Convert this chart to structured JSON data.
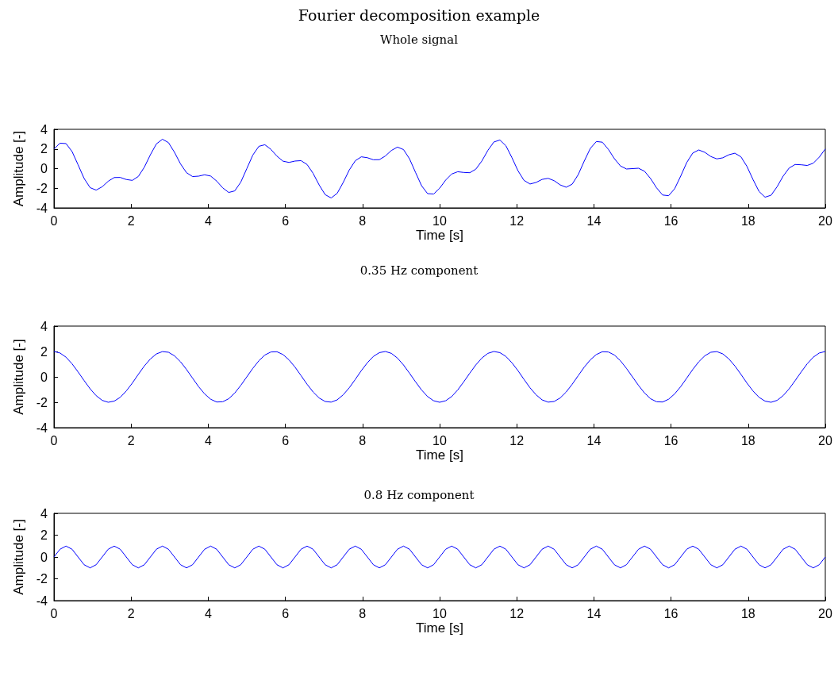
{
  "chart_data": [
    {
      "type": "line",
      "title": "Fourier decomposition example",
      "subtitle": "Whole signal",
      "xlabel": "Time [s]",
      "ylabel": "Amplitude [-]",
      "xlim": [
        0,
        20
      ],
      "xticks": [
        0,
        2,
        4,
        6,
        8,
        10,
        12,
        14,
        16,
        18,
        20
      ],
      "ylim": [
        -4,
        4
      ],
      "yticks": [
        -4,
        -2,
        0,
        2,
        4
      ],
      "x": [
        0,
        0.15625,
        0.3125,
        0.46875,
        0.625,
        0.78125,
        0.9375,
        1.09375,
        1.25,
        1.40625,
        1.5625,
        1.71875,
        1.875,
        2.03125,
        2.1875,
        2.34375,
        2.5,
        2.65625,
        2.8125,
        2.96875,
        3.125,
        3.28125,
        3.4375,
        3.59375,
        3.75,
        3.90625,
        4.0625,
        4.21875,
        4.375,
        4.53125,
        4.6875,
        4.84375,
        5,
        5.15625,
        5.3125,
        5.46875,
        5.625,
        5.78125,
        5.9375,
        6.09375,
        6.25,
        6.40625,
        6.5625,
        6.71875,
        6.875,
        7.03125,
        7.1875,
        7.34375,
        7.5,
        7.65625,
        7.8125,
        7.96875,
        8.125,
        8.28125,
        8.4375,
        8.59375,
        8.75,
        8.90625,
        9.0625,
        9.21875,
        9.375,
        9.53125,
        9.6875,
        9.84375,
        10,
        10.15625,
        10.3125,
        10.46875,
        10.625,
        10.78125,
        10.9375,
        11.09375,
        11.25,
        11.40625,
        11.5625,
        11.71875,
        11.875,
        12.03125,
        12.1875,
        12.34375,
        12.5,
        12.65625,
        12.8125,
        12.96875,
        13.125,
        13.28125,
        13.4375,
        13.59375,
        13.75,
        13.90625,
        14.0625,
        14.21875,
        14.375,
        14.53125,
        14.6875,
        14.84375,
        15,
        15.15625,
        15.3125,
        15.46875,
        15.625,
        15.78125,
        15.9375,
        16.09375,
        16.25,
        16.40625,
        16.5625,
        16.71875,
        16.875,
        17.03125,
        17.1875,
        17.34375,
        17.5,
        17.65625,
        17.8125,
        17.96875,
        18.125,
        18.28125,
        18.4375,
        18.59375,
        18.75,
        18.90625,
        19.0625,
        19.21875,
        19.375,
        19.53125,
        19.6875,
        19.84375,
        20
      ],
      "series": [
        {
          "color": "#0000ff",
          "values": [
            2.0,
            2.59,
            2.55,
            1.74,
            0.39,
            -1.0,
            -1.94,
            -2.19,
            -1.85,
            -1.29,
            -0.91,
            -0.9,
            -1.11,
            -1.2,
            -0.8,
            0.15,
            1.41,
            2.52,
            2.99,
            2.65,
            1.66,
            0.48,
            -0.42,
            -0.81,
            -0.77,
            -0.63,
            -0.76,
            -1.27,
            -1.96,
            -2.43,
            -2.27,
            -1.38,
            0.0,
            1.38,
            2.27,
            2.43,
            1.96,
            1.27,
            0.76,
            0.63,
            0.77,
            0.81,
            0.42,
            -0.48,
            -1.66,
            -2.65,
            -2.99,
            -2.52,
            -1.41,
            -0.15,
            0.8,
            1.2,
            1.11,
            0.9,
            0.91,
            1.29,
            1.85,
            2.19,
            1.94,
            1.0,
            -0.39,
            -1.74,
            -2.55,
            -2.59,
            -2.0,
            -1.17,
            -0.55,
            -0.32,
            -0.39,
            -0.42,
            -0.06,
            0.77,
            1.85,
            2.71,
            2.91,
            2.32,
            1.11,
            -0.22,
            -1.2,
            -1.57,
            -1.41,
            -1.1,
            -0.99,
            -1.23,
            -1.66,
            -1.9,
            -1.58,
            -0.61,
            0.77,
            2.05,
            2.76,
            2.69,
            1.96,
            1.01,
            0.27,
            -0.04,
            0.0,
            0.04,
            -0.27,
            -1.01,
            -1.96,
            -2.69,
            -2.76,
            -2.05,
            -0.77,
            0.61,
            1.58,
            1.9,
            1.66,
            1.23,
            0.99,
            1.1,
            1.41,
            1.57,
            1.2,
            0.22,
            -1.11,
            -2.32,
            -2.91,
            -2.71,
            -1.85,
            -0.77,
            0.06,
            0.42,
            0.39,
            0.32,
            0.55,
            1.17,
            2.0
          ]
        }
      ]
    },
    {
      "type": "line",
      "title": "0.35 Hz component",
      "xlabel": "Time [s]",
      "ylabel": "Amplitude [-]",
      "xlim": [
        0,
        20
      ],
      "xticks": [
        0,
        2,
        4,
        6,
        8,
        10,
        12,
        14,
        16,
        18,
        20
      ],
      "ylim": [
        -4,
        4
      ],
      "yticks": [
        -4,
        -2,
        0,
        2,
        4
      ],
      "x": [
        0,
        0.15625,
        0.3125,
        0.46875,
        0.625,
        0.78125,
        0.9375,
        1.09375,
        1.25,
        1.40625,
        1.5625,
        1.71875,
        1.875,
        2.03125,
        2.1875,
        2.34375,
        2.5,
        2.65625,
        2.8125,
        2.96875,
        3.125,
        3.28125,
        3.4375,
        3.59375,
        3.75,
        3.90625,
        4.0625,
        4.21875,
        4.375,
        4.53125,
        4.6875,
        4.84375,
        5,
        5.15625,
        5.3125,
        5.46875,
        5.625,
        5.78125,
        5.9375,
        6.09375,
        6.25,
        6.40625,
        6.5625,
        6.71875,
        6.875,
        7.03125,
        7.1875,
        7.34375,
        7.5,
        7.65625,
        7.8125,
        7.96875,
        8.125,
        8.28125,
        8.4375,
        8.59375,
        8.75,
        8.90625,
        9.0625,
        9.21875,
        9.375,
        9.53125,
        9.6875,
        9.84375,
        10,
        10.15625,
        10.3125,
        10.46875,
        10.625,
        10.78125,
        10.9375,
        11.09375,
        11.25,
        11.40625,
        11.5625,
        11.71875,
        11.875,
        12.03125,
        12.1875,
        12.34375,
        12.5,
        12.65625,
        12.8125,
        12.96875,
        13.125,
        13.28125,
        13.4375,
        13.59375,
        13.75,
        13.90625,
        14.0625,
        14.21875,
        14.375,
        14.53125,
        14.6875,
        14.84375,
        15,
        15.15625,
        15.3125,
        15.46875,
        15.625,
        15.78125,
        15.9375,
        16.09375,
        16.25,
        16.40625,
        16.5625,
        16.71875,
        16.875,
        17.03125,
        17.1875,
        17.34375,
        17.5,
        17.65625,
        17.8125,
        17.96875,
        18.125,
        18.28125,
        18.4375,
        18.59375,
        18.75,
        18.90625,
        19.0625,
        19.21875,
        19.375,
        19.53125,
        19.6875,
        19.84375,
        20
      ],
      "series": [
        {
          "color": "#0000ff",
          "values": [
            2.0,
            1.88,
            1.55,
            1.03,
            0.39,
            -0.29,
            -0.94,
            -1.48,
            -1.85,
            -2.0,
            -1.91,
            -1.61,
            -1.11,
            -0.49,
            0.2,
            0.86,
            1.41,
            1.81,
            1.99,
            1.94,
            1.66,
            1.19,
            0.58,
            -0.1,
            -0.77,
            -1.34,
            -1.76,
            -1.98,
            -1.96,
            -1.72,
            -1.27,
            -0.67,
            0.0,
            0.67,
            1.27,
            1.72,
            1.96,
            1.98,
            1.76,
            1.34,
            0.77,
            0.1,
            -0.58,
            -1.19,
            -1.66,
            -1.94,
            -1.99,
            -1.81,
            -1.41,
            -0.86,
            -0.2,
            0.49,
            1.11,
            1.61,
            1.91,
            2.0,
            1.85,
            1.48,
            0.94,
            0.29,
            -0.39,
            -1.03,
            -1.55,
            -1.88,
            -2.0,
            -1.88,
            -1.55,
            -1.03,
            -0.39,
            0.29,
            0.94,
            1.48,
            1.85,
            2.0,
            1.91,
            1.61,
            1.11,
            0.49,
            -0.2,
            -0.86,
            -1.41,
            -1.81,
            -1.99,
            -1.94,
            -1.66,
            -1.19,
            -0.58,
            0.1,
            0.77,
            1.34,
            1.76,
            1.98,
            1.96,
            1.72,
            1.27,
            0.67,
            0.0,
            -0.67,
            -1.27,
            -1.72,
            -1.96,
            -1.98,
            -1.76,
            -1.34,
            -0.77,
            -0.1,
            0.58,
            1.19,
            1.66,
            1.94,
            1.99,
            1.81,
            1.41,
            0.86,
            0.2,
            -0.49,
            -1.11,
            -1.61,
            -1.91,
            -2.0,
            -1.85,
            -1.48,
            -0.94,
            -0.29,
            0.39,
            1.03,
            1.55,
            1.88,
            2.0
          ]
        }
      ]
    },
    {
      "type": "line",
      "title": "0.8 Hz component",
      "xlabel": "Time [s]",
      "ylabel": "Amplitude [-]",
      "xlim": [
        0,
        20
      ],
      "xticks": [
        0,
        2,
        4,
        6,
        8,
        10,
        12,
        14,
        16,
        18,
        20
      ],
      "ylim": [
        -4,
        4
      ],
      "yticks": [
        -4,
        -2,
        0,
        2,
        4
      ],
      "x": [
        0,
        0.15625,
        0.3125,
        0.46875,
        0.625,
        0.78125,
        0.9375,
        1.09375,
        1.25,
        1.40625,
        1.5625,
        1.71875,
        1.875,
        2.03125,
        2.1875,
        2.34375,
        2.5,
        2.65625,
        2.8125,
        2.96875,
        3.125,
        3.28125,
        3.4375,
        3.59375,
        3.75,
        3.90625,
        4.0625,
        4.21875,
        4.375,
        4.53125,
        4.6875,
        4.84375,
        5,
        5.15625,
        5.3125,
        5.46875,
        5.625,
        5.78125,
        5.9375,
        6.09375,
        6.25,
        6.40625,
        6.5625,
        6.71875,
        6.875,
        7.03125,
        7.1875,
        7.34375,
        7.5,
        7.65625,
        7.8125,
        7.96875,
        8.125,
        8.28125,
        8.4375,
        8.59375,
        8.75,
        8.90625,
        9.0625,
        9.21875,
        9.375,
        9.53125,
        9.6875,
        9.84375,
        10,
        10.15625,
        10.3125,
        10.46875,
        10.625,
        10.78125,
        10.9375,
        11.09375,
        11.25,
        11.40625,
        11.5625,
        11.71875,
        11.875,
        12.03125,
        12.1875,
        12.34375,
        12.5,
        12.65625,
        12.8125,
        12.96875,
        13.125,
        13.28125,
        13.4375,
        13.59375,
        13.75,
        13.90625,
        14.0625,
        14.21875,
        14.375,
        14.53125,
        14.6875,
        14.84375,
        15,
        15.15625,
        15.3125,
        15.46875,
        15.625,
        15.78125,
        15.9375,
        16.09375,
        16.25,
        16.40625,
        16.5625,
        16.71875,
        16.875,
        17.03125,
        17.1875,
        17.34375,
        17.5,
        17.65625,
        17.8125,
        17.96875,
        18.125,
        18.28125,
        18.4375,
        18.59375,
        18.75,
        18.90625,
        19.0625,
        19.21875,
        19.375,
        19.53125,
        19.6875,
        19.84375,
        20
      ],
      "series": [
        {
          "color": "#0000ff",
          "values": [
            0,
            0.71,
            1,
            0.71,
            0,
            -0.71,
            -1,
            -0.71,
            0,
            0.71,
            1,
            0.71,
            0,
            -0.71,
            -1,
            -0.71,
            0,
            0.71,
            1,
            0.71,
            0,
            -0.71,
            -1,
            -0.71,
            0,
            0.71,
            1,
            0.71,
            0,
            -0.71,
            -1,
            -0.71,
            0,
            0.71,
            1,
            0.71,
            0,
            -0.71,
            -1,
            -0.71,
            0,
            0.71,
            1,
            0.71,
            0,
            -0.71,
            -1,
            -0.71,
            0,
            0.71,
            1,
            0.71,
            0,
            -0.71,
            -1,
            -0.71,
            0,
            0.71,
            1,
            0.71,
            0,
            -0.71,
            -1,
            -0.71,
            0,
            0.71,
            1,
            0.71,
            0,
            -0.71,
            -1,
            -0.71,
            0,
            0.71,
            1,
            0.71,
            0,
            -0.71,
            -1,
            -0.71,
            0,
            0.71,
            1,
            0.71,
            0,
            -0.71,
            -1,
            -0.71,
            0,
            0.71,
            1,
            0.71,
            0,
            -0.71,
            -1,
            -0.71,
            0,
            0.71,
            1,
            0.71,
            0,
            -0.71,
            -1,
            -0.71,
            0,
            0.71,
            1,
            0.71,
            0,
            -0.71,
            -1,
            -0.71,
            0,
            0.71,
            1,
            0.71,
            0,
            -0.71,
            -1,
            -0.71,
            0,
            0.71,
            1,
            0.71,
            0,
            -0.71,
            -1,
            -0.71,
            0
          ]
        }
      ]
    }
  ]
}
